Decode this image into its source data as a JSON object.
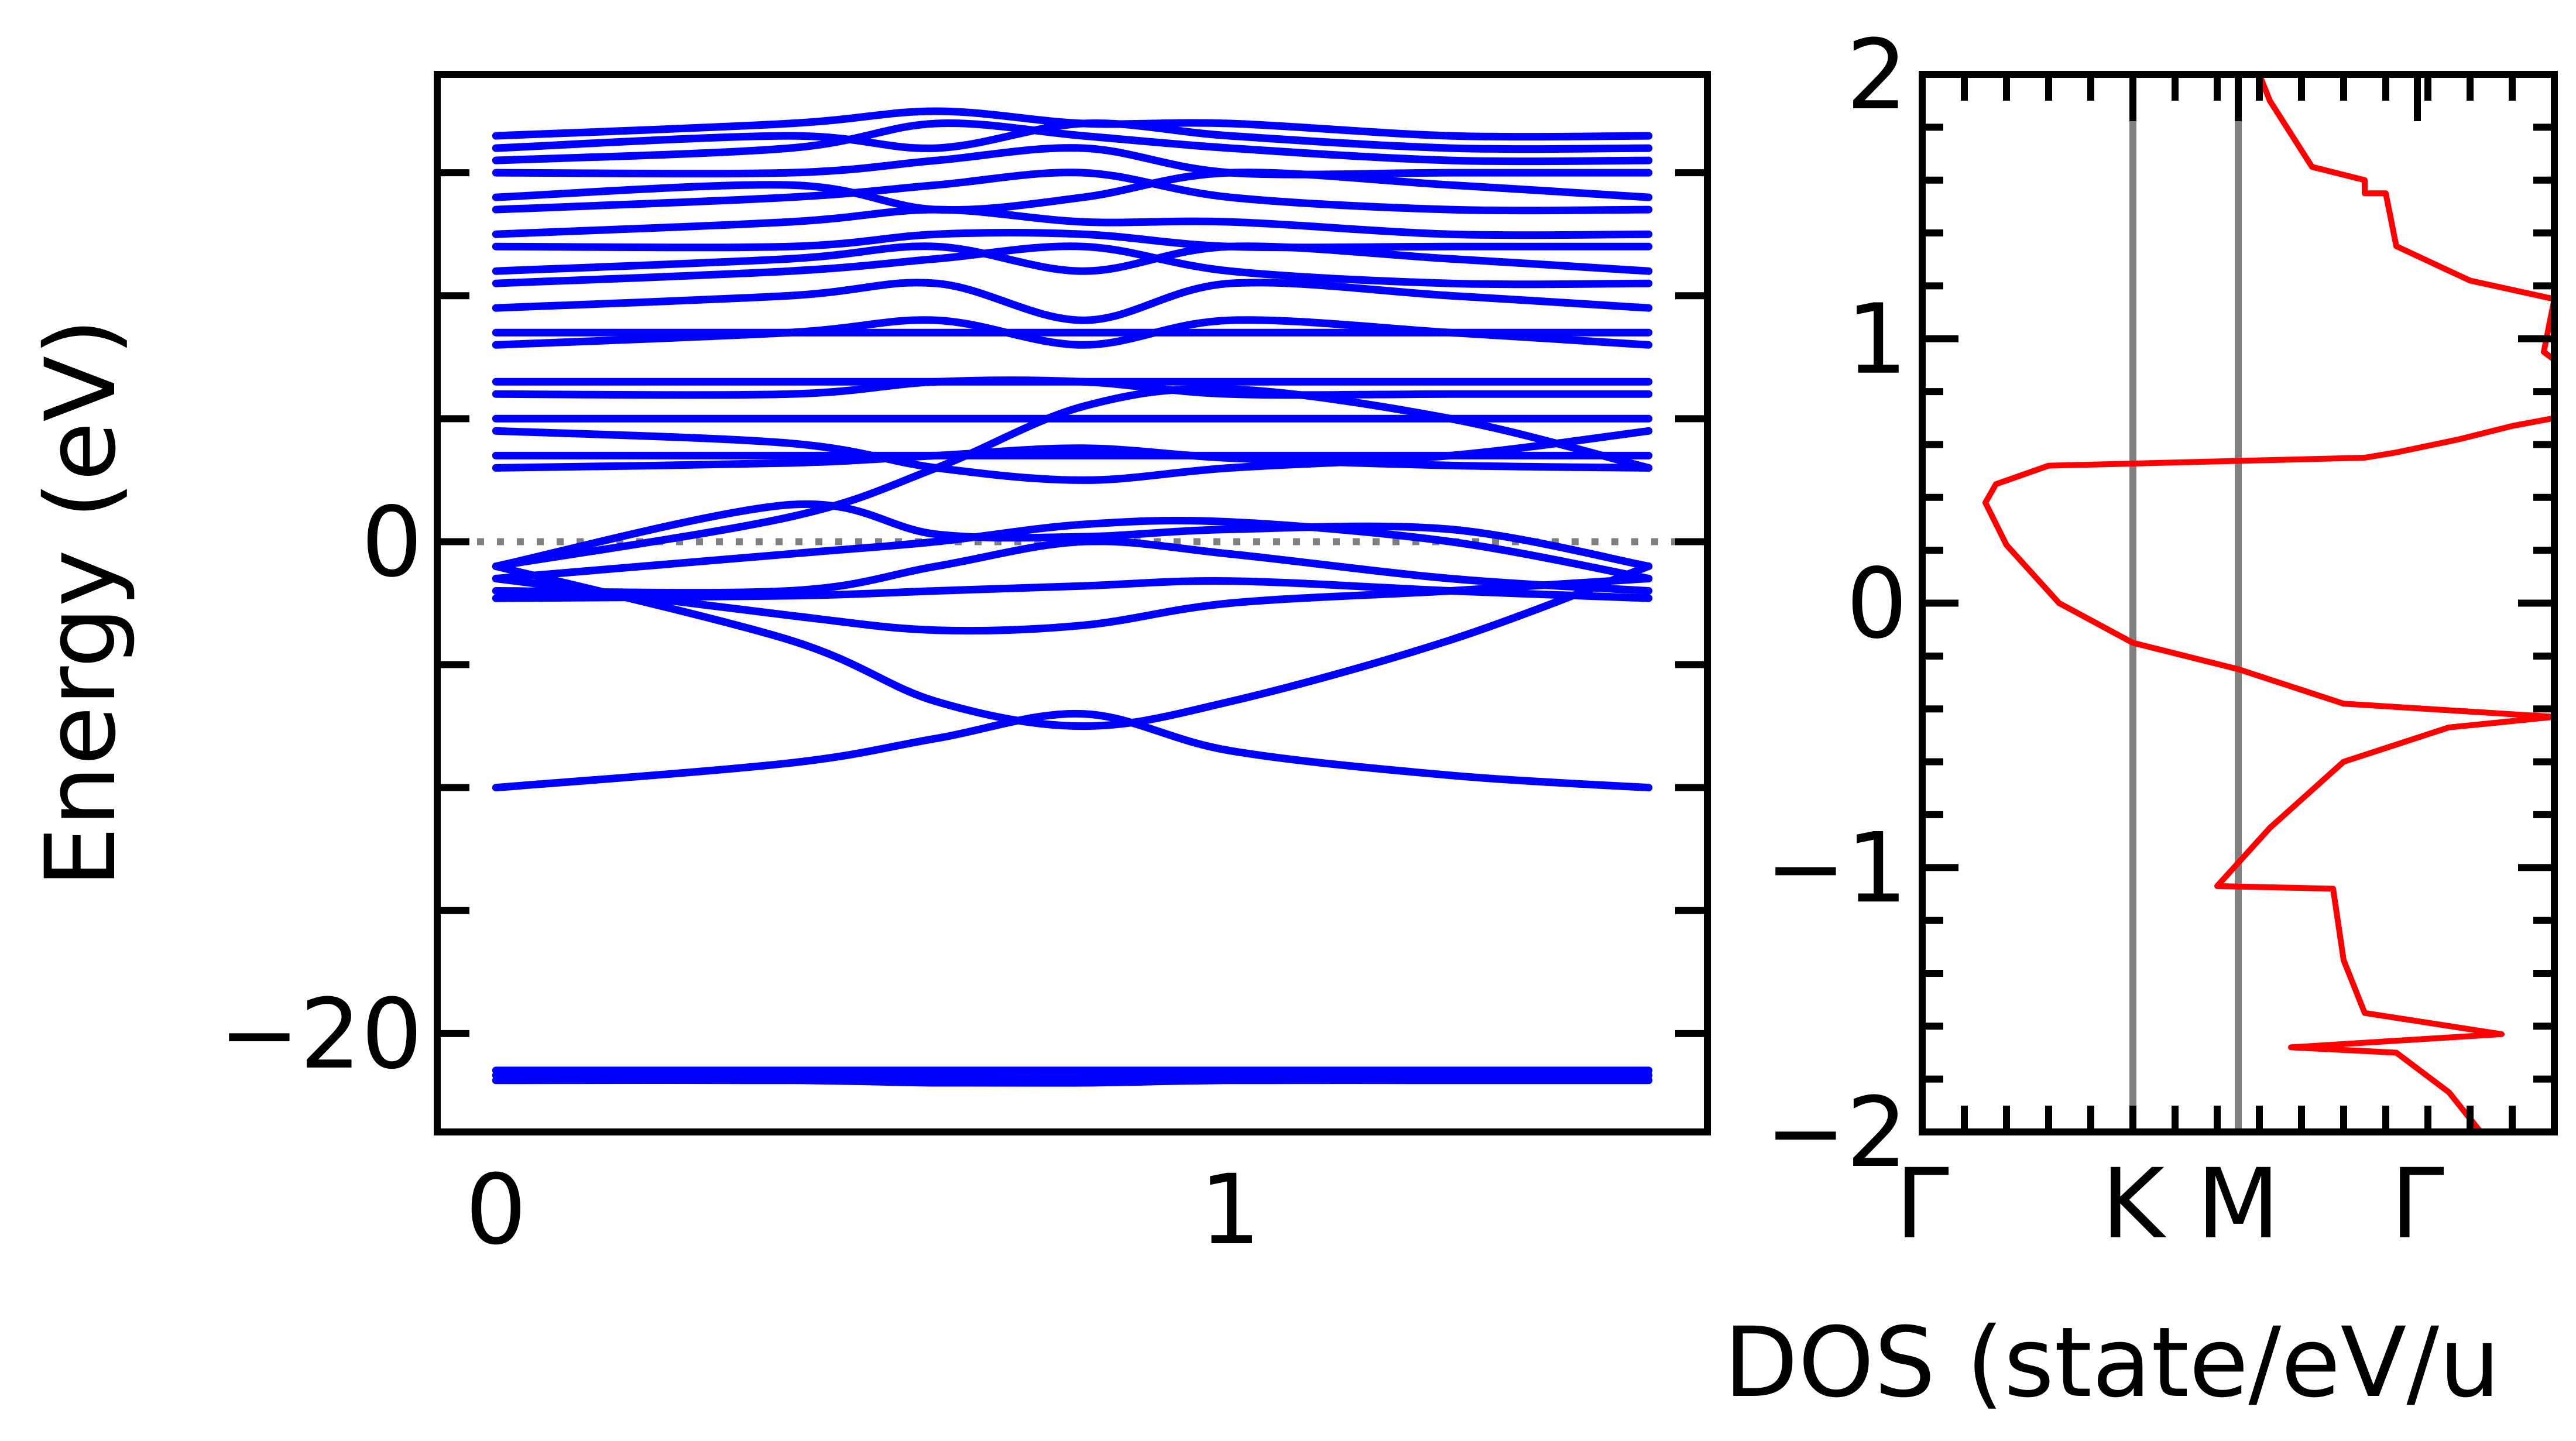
{
  "chart_data": [
    {
      "type": "line",
      "panel": "band-structure",
      "ylabel": "Energy (eV)",
      "xlabel": "",
      "xlim": [
        -0.08,
        1.65
      ],
      "ylim": [
        -24.0,
        19.0
      ],
      "xticks": [
        {
          "value": 0,
          "label": "0"
        },
        {
          "value": 1,
          "label": "1"
        }
      ],
      "yticks_major": [
        {
          "value": 0,
          "label": "0"
        },
        {
          "value": -20,
          "label": "−20"
        }
      ],
      "yticks_minor": [
        15,
        10,
        5,
        -5,
        -10,
        -15
      ],
      "fermi_level": 0,
      "grid": false,
      "colors": {
        "bands": "#0000ff",
        "fermi_line": "#808080",
        "axes": "#000000"
      },
      "band_x": [
        0,
        0.4,
        0.6,
        0.8,
        1.0,
        1.3,
        1.57
      ],
      "series": [
        {
          "values": [
            -21.5,
            -21.5,
            -21.5,
            -21.5,
            -21.5,
            -21.5,
            -21.5
          ]
        },
        {
          "values": [
            -21.7,
            -21.7,
            -21.8,
            -21.8,
            -21.7,
            -21.7,
            -21.7
          ]
        },
        {
          "values": [
            -21.9,
            -21.9,
            -22.0,
            -22.0,
            -21.9,
            -21.9,
            -21.9
          ]
        },
        {
          "values": [
            -10.0,
            -9.0,
            -8.0,
            -7.0,
            -8.5,
            -9.5,
            -10.0
          ]
        },
        {
          "values": [
            -1.0,
            -4.0,
            -6.5,
            -7.5,
            -6.5,
            -4.0,
            -1.0
          ]
        },
        {
          "values": [
            -1.5,
            -3.0,
            -3.6,
            -3.4,
            -2.5,
            -2.0,
            -1.5
          ]
        },
        {
          "values": [
            -2.0,
            -2.0,
            -1.0,
            0.0,
            -0.5,
            -1.5,
            -2.0
          ]
        },
        {
          "values": [
            -1.5,
            -0.5,
            0.0,
            0.7,
            0.8,
            0.0,
            -1.5
          ]
        },
        {
          "values": [
            -1.0,
            1.5,
            0.3,
            0.2,
            0.5,
            0.5,
            -1.0
          ]
        },
        {
          "values": [
            -2.3,
            -2.2,
            -2.0,
            -1.8,
            -1.6,
            -2.0,
            -2.3
          ]
        },
        {
          "values": [
            -1.0,
            1.0,
            3.0,
            5.5,
            6.2,
            5.0,
            3.0
          ]
        },
        {
          "values": [
            3.0,
            3.2,
            3.5,
            3.8,
            3.4,
            3.1,
            3.0
          ]
        },
        {
          "values": [
            3.5,
            3.5,
            3.5,
            3.5,
            3.5,
            3.5,
            3.5
          ]
        },
        {
          "values": [
            4.5,
            4.0,
            3.0,
            2.5,
            3.0,
            3.5,
            4.5
          ]
        },
        {
          "values": [
            5.0,
            5.0,
            5.0,
            5.0,
            5.0,
            5.0,
            5.0
          ]
        },
        {
          "values": [
            6.0,
            6.0,
            6.5,
            6.5,
            6.0,
            6.0,
            6.0
          ]
        },
        {
          "values": [
            6.5,
            6.5,
            6.5,
            6.5,
            6.5,
            6.5,
            6.5
          ]
        },
        {
          "values": [
            8.0,
            8.5,
            9.0,
            8.0,
            9.0,
            8.5,
            8.0
          ]
        },
        {
          "values": [
            8.5,
            8.5,
            8.5,
            8.5,
            8.5,
            8.5,
            8.5
          ]
        },
        {
          "values": [
            9.5,
            10.0,
            10.5,
            9.0,
            10.5,
            10.0,
            9.5
          ]
        },
        {
          "values": [
            10.5,
            11.0,
            11.5,
            12.0,
            11.0,
            10.5,
            10.5
          ]
        },
        {
          "values": [
            11.0,
            11.5,
            12.0,
            11.0,
            12.0,
            11.5,
            11.0
          ]
        },
        {
          "values": [
            12.0,
            12.0,
            12.5,
            12.5,
            12.0,
            12.0,
            12.0
          ]
        },
        {
          "values": [
            12.5,
            13.0,
            13.5,
            13.0,
            13.0,
            12.5,
            12.5
          ]
        },
        {
          "values": [
            13.5,
            14.0,
            14.5,
            15.0,
            14.0,
            13.5,
            13.5
          ]
        },
        {
          "values": [
            14.0,
            14.5,
            13.5,
            14.0,
            15.0,
            14.5,
            14.0
          ]
        },
        {
          "values": [
            15.0,
            15.0,
            15.5,
            16.0,
            15.0,
            15.0,
            15.0
          ]
        },
        {
          "values": [
            15.5,
            16.0,
            17.0,
            16.5,
            16.0,
            15.5,
            15.5
          ]
        },
        {
          "values": [
            16.0,
            16.5,
            16.0,
            17.0,
            16.5,
            16.0,
            16.0
          ]
        },
        {
          "values": [
            16.5,
            17.0,
            17.5,
            17.0,
            17.0,
            16.5,
            16.5
          ]
        }
      ]
    },
    {
      "type": "line",
      "panel": "dos",
      "xlabel": "DOS (state/eV/u",
      "ylabel": "",
      "ylim": [
        -2,
        2
      ],
      "xlim": [
        0,
        6
      ],
      "yticks_major": [
        {
          "value": 2,
          "label": "2"
        },
        {
          "value": 1,
          "label": "1"
        },
        {
          "value": 0,
          "label": "0"
        },
        {
          "value": -1,
          "label": "−1"
        },
        {
          "value": -2,
          "label": "−2"
        }
      ],
      "yticks_minor_step": 0.2,
      "top_axis_label_positions": [
        {
          "value": 0,
          "label": "Γ"
        },
        {
          "value": 2.0,
          "label": "K"
        },
        {
          "value": 3.0,
          "label": "M"
        },
        {
          "value": 4.7,
          "label": "Γ"
        }
      ],
      "vertical_lines_x": [
        2.0,
        3.0
      ],
      "grid": false,
      "colors": {
        "dos": "#ff0000",
        "vlines": "#808080",
        "axes": "#000000"
      },
      "series": [
        {
          "points": [
            [
              3.2,
              2.0
            ],
            [
              3.3,
              1.9
            ],
            [
              3.7,
              1.65
            ],
            [
              4.2,
              1.6
            ],
            [
              4.2,
              1.55
            ],
            [
              4.4,
              1.55
            ],
            [
              4.5,
              1.35
            ],
            [
              5.2,
              1.22
            ],
            [
              6.0,
              1.15
            ],
            [
              5.9,
              0.95
            ],
            [
              6.0,
              0.92
            ],
            [
              6.0,
              0.7
            ],
            [
              5.6,
              0.67
            ],
            [
              5.1,
              0.62
            ],
            [
              4.5,
              0.57
            ],
            [
              4.2,
              0.55
            ],
            [
              1.2,
              0.52
            ],
            [
              0.7,
              0.45
            ],
            [
              0.6,
              0.38
            ],
            [
              0.8,
              0.22
            ],
            [
              1.3,
              0.0
            ],
            [
              2.0,
              -0.15
            ],
            [
              3.0,
              -0.25
            ],
            [
              4.0,
              -0.38
            ],
            [
              6.0,
              -0.43
            ],
            [
              5.0,
              -0.47
            ],
            [
              4.0,
              -0.6
            ],
            [
              3.3,
              -0.85
            ],
            [
              2.8,
              -1.07
            ],
            [
              3.9,
              -1.08
            ],
            [
              4.0,
              -1.35
            ],
            [
              4.2,
              -1.55
            ],
            [
              5.5,
              -1.63
            ],
            [
              3.5,
              -1.68
            ],
            [
              4.5,
              -1.7
            ],
            [
              5.0,
              -1.85
            ],
            [
              5.2,
              -1.95
            ],
            [
              5.3,
              -2.0
            ]
          ]
        }
      ]
    }
  ]
}
